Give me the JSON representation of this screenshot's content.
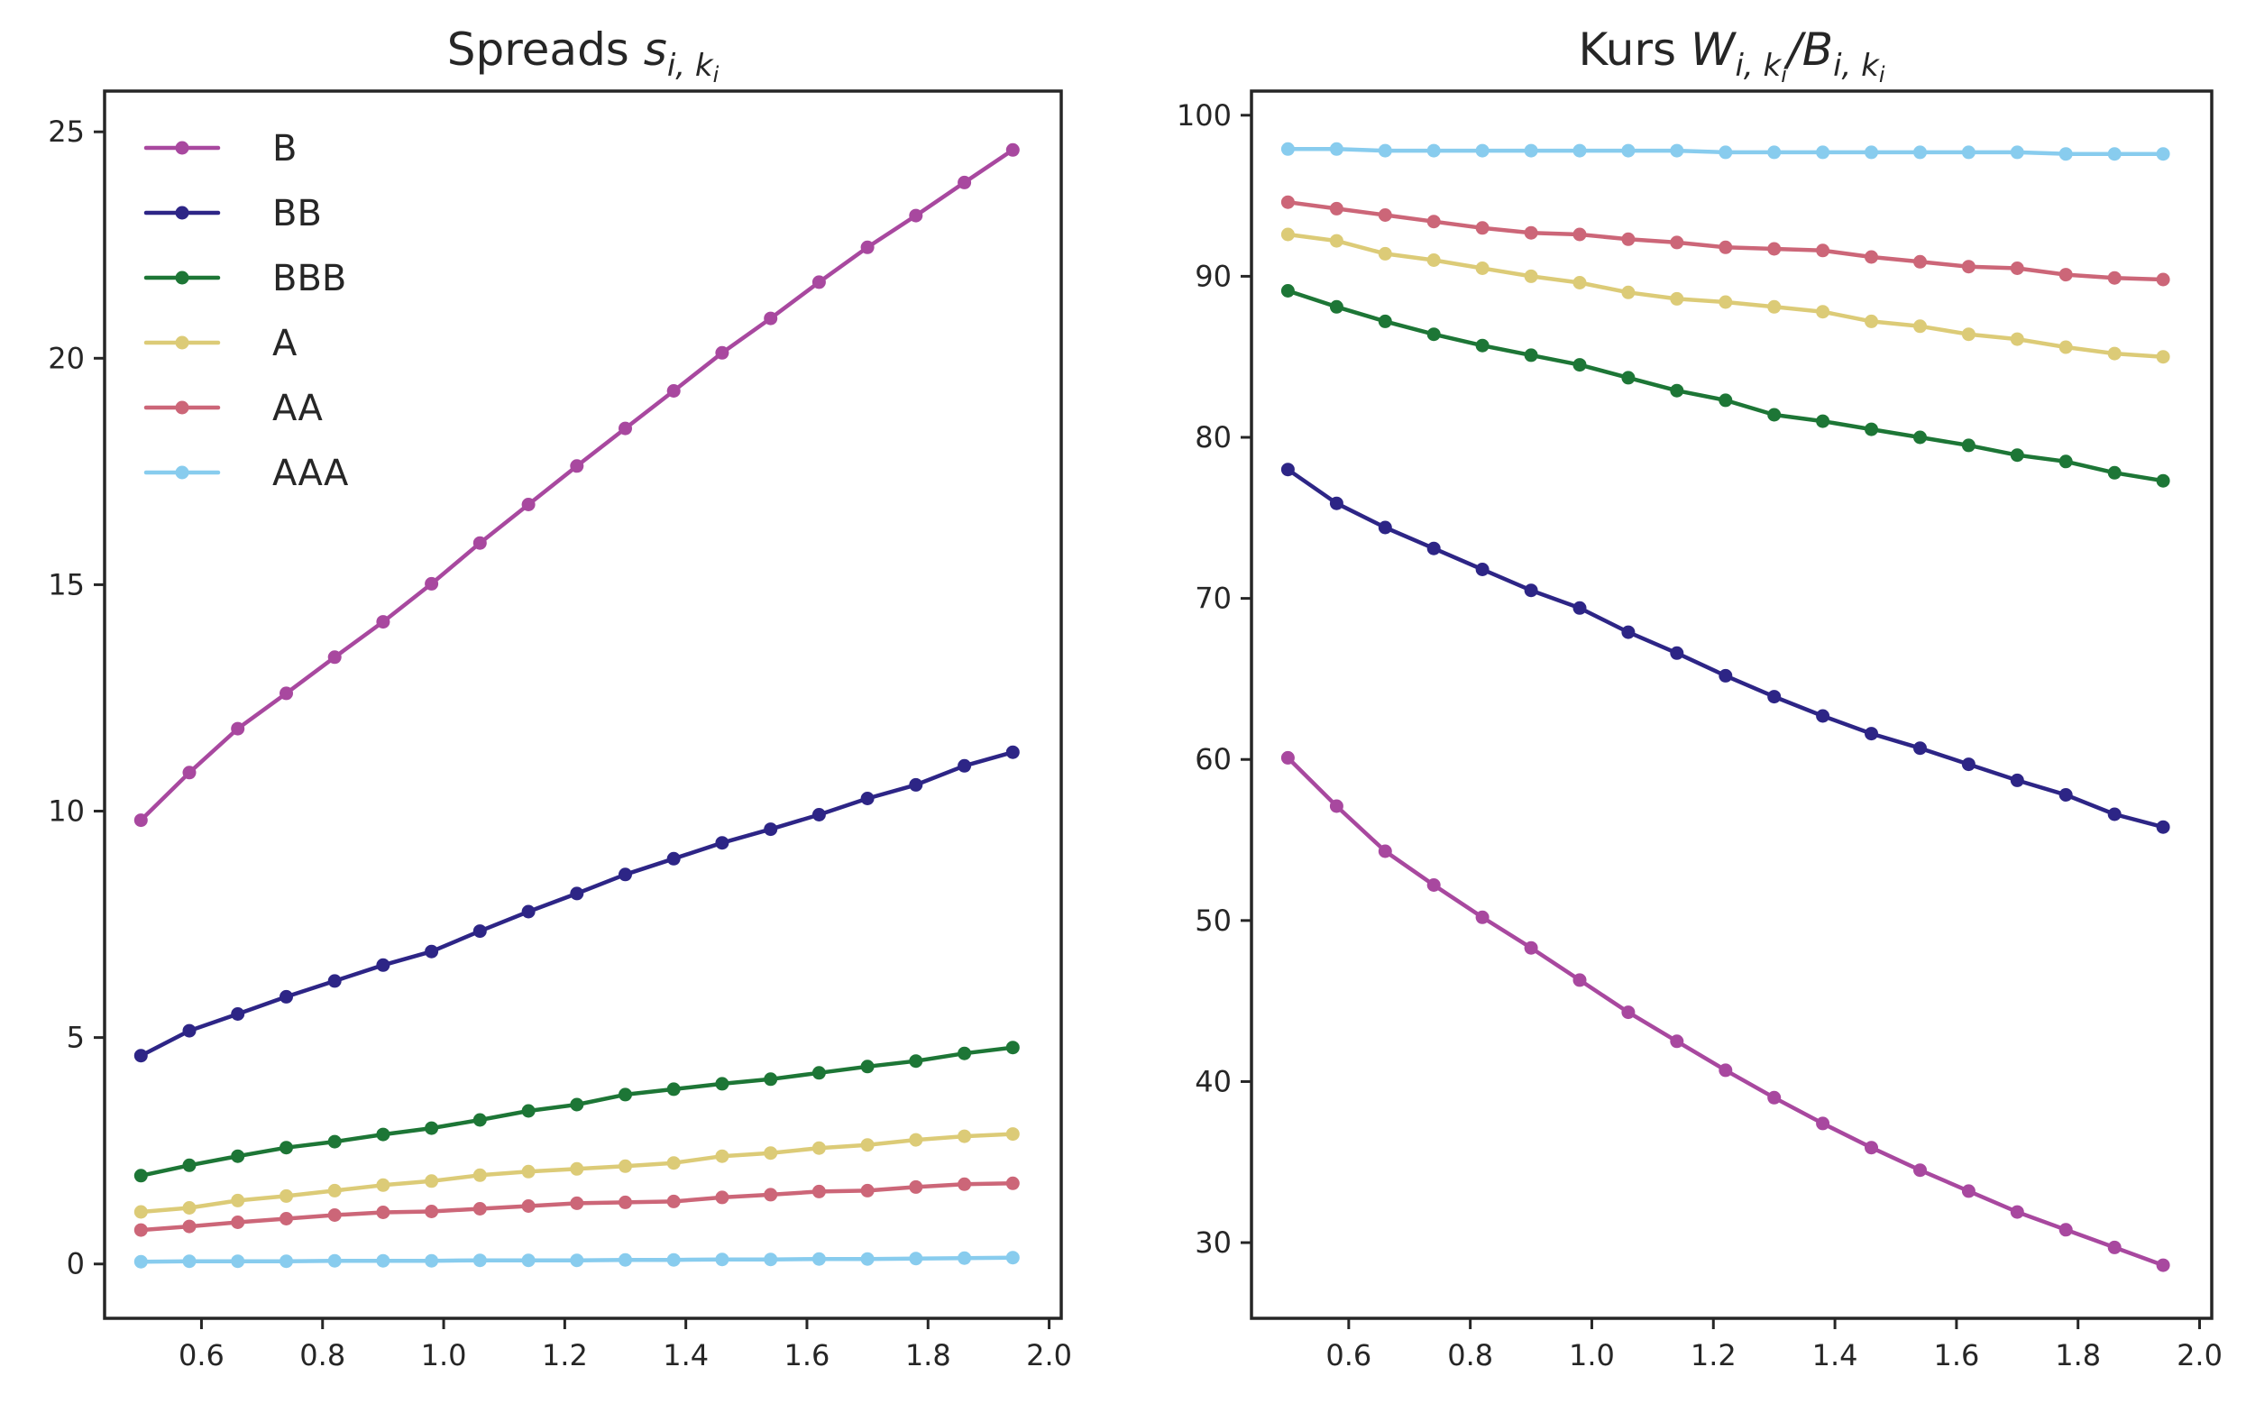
{
  "chart_data": [
    {
      "type": "line",
      "title": "Spreads s_{i,k_i}",
      "title_parts": {
        "main": "Spreads ",
        "symbol": "s",
        "sub": "i, k",
        "subsub": "i"
      },
      "xlim": [
        0.44,
        2.02
      ],
      "ylim": [
        -1.2,
        25.9
      ],
      "xticks": [
        0.6,
        0.8,
        1.0,
        1.2,
        1.4,
        1.6,
        1.8,
        2.0
      ],
      "xtick_labels": [
        "0.6",
        "0.8",
        "1.0",
        "1.2",
        "1.4",
        "1.6",
        "1.8",
        "2.0"
      ],
      "yticks": [
        0,
        5,
        10,
        15,
        20,
        25
      ],
      "ytick_labels": [
        "0",
        "5",
        "10",
        "15",
        "20",
        "25"
      ],
      "legend": "upper left",
      "grid": false,
      "x": [
        0.5,
        0.58,
        0.66,
        0.74,
        0.82,
        0.9,
        0.98,
        1.06,
        1.14,
        1.22,
        1.3,
        1.38,
        1.46,
        1.54,
        1.62,
        1.7,
        1.78,
        1.86,
        1.94
      ],
      "series": [
        {
          "name": "B",
          "color": "#a8489f",
          "values": [
            9.8,
            10.85,
            11.82,
            12.6,
            13.4,
            14.18,
            15.02,
            15.92,
            16.77,
            17.62,
            18.45,
            19.28,
            20.12,
            20.88,
            21.68,
            22.45,
            23.15,
            23.88,
            24.6
          ]
        },
        {
          "name": "BB",
          "color": "#2d2586",
          "values": [
            4.6,
            5.15,
            5.52,
            5.9,
            6.25,
            6.6,
            6.9,
            7.35,
            7.78,
            8.18,
            8.6,
            8.95,
            9.3,
            9.6,
            9.92,
            10.28,
            10.58,
            11.0,
            11.3
          ]
        },
        {
          "name": "BBB",
          "color": "#1d7636",
          "values": [
            1.95,
            2.18,
            2.38,
            2.57,
            2.7,
            2.86,
            3.0,
            3.18,
            3.38,
            3.52,
            3.74,
            3.86,
            3.98,
            4.08,
            4.22,
            4.36,
            4.48,
            4.65,
            4.78
          ]
        },
        {
          "name": "A",
          "color": "#dccb77",
          "values": [
            1.15,
            1.24,
            1.4,
            1.5,
            1.62,
            1.74,
            1.83,
            1.96,
            2.04,
            2.1,
            2.16,
            2.23,
            2.38,
            2.45,
            2.56,
            2.63,
            2.74,
            2.82,
            2.87
          ]
        },
        {
          "name": "AA",
          "color": "#cc6678",
          "values": [
            0.75,
            0.83,
            0.92,
            1.0,
            1.08,
            1.14,
            1.16,
            1.22,
            1.28,
            1.34,
            1.36,
            1.38,
            1.47,
            1.53,
            1.6,
            1.62,
            1.7,
            1.76,
            1.78
          ]
        },
        {
          "name": "AAA",
          "color": "#88ccee",
          "values": [
            0.05,
            0.06,
            0.06,
            0.06,
            0.07,
            0.07,
            0.07,
            0.08,
            0.08,
            0.08,
            0.09,
            0.09,
            0.1,
            0.1,
            0.11,
            0.11,
            0.12,
            0.13,
            0.14
          ]
        }
      ]
    },
    {
      "type": "line",
      "title": "Kurs W_{i,k_i}/B_{i,k_i}",
      "title_parts": {
        "main": "Kurs ",
        "symbol1": "W",
        "sub1": "i, k",
        "subsub1": "i",
        "slash": "/",
        "symbol2": "B",
        "sub2": "i, k",
        "subsub2": "i"
      },
      "xlim": [
        0.44,
        2.02
      ],
      "ylim": [
        25.3,
        101.5
      ],
      "xticks": [
        0.6,
        0.8,
        1.0,
        1.2,
        1.4,
        1.6,
        1.8,
        2.0
      ],
      "xtick_labels": [
        "0.6",
        "0.8",
        "1.0",
        "1.2",
        "1.4",
        "1.6",
        "1.8",
        "2.0"
      ],
      "yticks": [
        30,
        40,
        50,
        60,
        70,
        80,
        90,
        100
      ],
      "ytick_labels": [
        "30",
        "40",
        "50",
        "60",
        "70",
        "80",
        "90",
        "100"
      ],
      "grid": false,
      "x": [
        0.5,
        0.58,
        0.66,
        0.74,
        0.82,
        0.9,
        0.98,
        1.06,
        1.14,
        1.22,
        1.3,
        1.38,
        1.46,
        1.54,
        1.62,
        1.7,
        1.78,
        1.86,
        1.94
      ],
      "series": [
        {
          "name": "B",
          "color": "#a8489f",
          "values": [
            60.1,
            57.1,
            54.3,
            52.2,
            50.2,
            48.3,
            46.3,
            44.3,
            42.5,
            40.7,
            39.0,
            37.4,
            35.9,
            34.5,
            33.2,
            31.9,
            30.8,
            29.7,
            28.6
          ]
        },
        {
          "name": "BB",
          "color": "#2d2586",
          "values": [
            78.0,
            75.9,
            74.4,
            73.1,
            71.8,
            70.5,
            69.4,
            67.9,
            66.6,
            65.2,
            63.9,
            62.7,
            61.6,
            60.7,
            59.7,
            58.7,
            57.8,
            56.6,
            55.8
          ]
        },
        {
          "name": "BBB",
          "color": "#1d7636",
          "values": [
            89.1,
            88.1,
            87.2,
            86.4,
            85.7,
            85.1,
            84.5,
            83.7,
            82.9,
            82.3,
            81.4,
            81.0,
            80.5,
            80.0,
            79.5,
            78.9,
            78.5,
            77.8,
            77.3
          ]
        },
        {
          "name": "A",
          "color": "#dccb77",
          "values": [
            92.6,
            92.2,
            91.4,
            91.0,
            90.5,
            90.0,
            89.6,
            89.0,
            88.6,
            88.4,
            88.1,
            87.8,
            87.2,
            86.9,
            86.4,
            86.1,
            85.6,
            85.2,
            85.0
          ]
        },
        {
          "name": "AA",
          "color": "#cc6678",
          "values": [
            94.6,
            94.2,
            93.8,
            93.4,
            93.0,
            92.7,
            92.6,
            92.3,
            92.1,
            91.8,
            91.7,
            91.6,
            91.2,
            90.9,
            90.6,
            90.5,
            90.1,
            89.9,
            89.8
          ]
        },
        {
          "name": "AAA",
          "color": "#88ccee",
          "values": [
            97.9,
            97.9,
            97.8,
            97.8,
            97.8,
            97.8,
            97.8,
            97.8,
            97.8,
            97.7,
            97.7,
            97.7,
            97.7,
            97.7,
            97.7,
            97.7,
            97.6,
            97.6,
            97.6
          ]
        }
      ]
    }
  ]
}
